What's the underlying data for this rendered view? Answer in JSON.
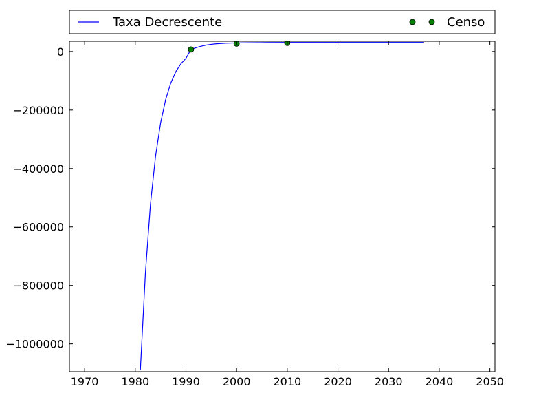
{
  "chart_data": {
    "type": "line",
    "xlim": [
      1967,
      2051
    ],
    "ylim": [
      -1095000,
      35000
    ],
    "xticks": [
      1970,
      1980,
      1990,
      2000,
      2010,
      2020,
      2030,
      2040,
      2050
    ],
    "yticks": [
      0,
      -200000,
      -400000,
      -600000,
      -800000,
      -1000000
    ],
    "xtick_labels": [
      "1970",
      "1980",
      "1990",
      "2000",
      "2010",
      "2020",
      "2030",
      "2040",
      "2050"
    ],
    "ytick_labels": [
      "0",
      "−200000",
      "−400000",
      "−600000",
      "−800000",
      "−1000000"
    ],
    "grid": false,
    "legend_position": "top",
    "series": [
      {
        "name": "Taxa Decrescente",
        "kind": "line",
        "color": "#0000ff",
        "x": [
          1981.0,
          1982.0,
          1983.0,
          1984.0,
          1985.0,
          1986.0,
          1987.0,
          1988.0,
          1989.0,
          1990.0,
          1991.0,
          1992.0,
          1993.0,
          1994.0,
          1995.0,
          1996.0,
          1998.0,
          2000.0,
          2003.0,
          2006.0,
          2010.0,
          2015.0,
          2020.0,
          2025.0,
          2030.0,
          2037.0
        ],
        "y": [
          -1090000,
          -757000,
          -522000,
          -358000,
          -244000,
          -164000,
          -108000,
          -69000,
          -42000,
          -23000,
          7000,
          13000,
          18000,
          22000,
          24500,
          26500,
          28500,
          29500,
          30200,
          30600,
          30800,
          30950,
          31000,
          31020,
          31030,
          31040
        ]
      },
      {
        "name": "Censo",
        "kind": "scatter",
        "color": "#007f00",
        "x": [
          1991,
          2000,
          2010
        ],
        "y": [
          7000,
          27000,
          29500
        ]
      }
    ]
  }
}
